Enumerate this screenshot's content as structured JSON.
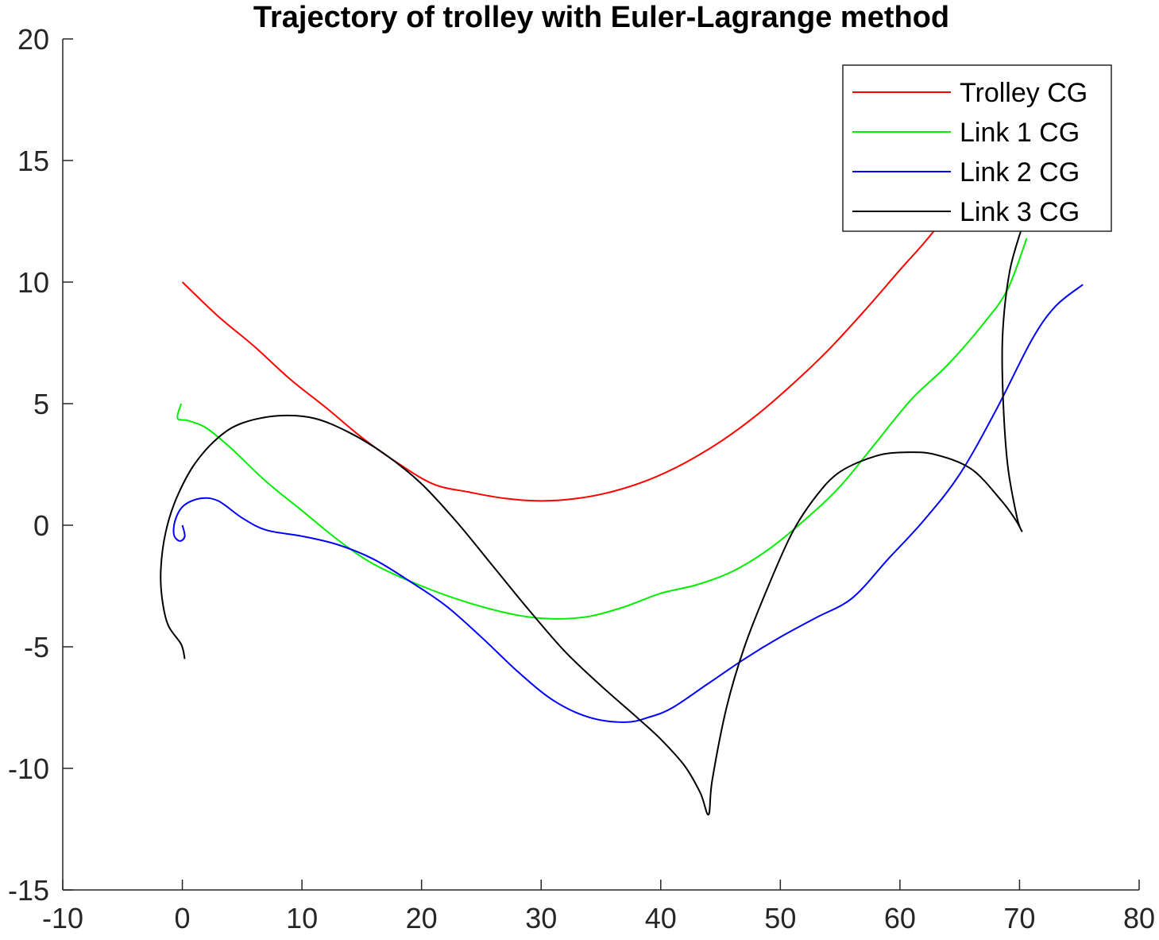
{
  "chart_data": {
    "type": "line",
    "title": "Trajectory of trolley with Euler-Lagrange method",
    "xlabel": "",
    "ylabel": "",
    "xlim": [
      -10,
      80
    ],
    "ylim": [
      -15,
      20
    ],
    "xticks": [
      "-10",
      "0",
      "10",
      "20",
      "30",
      "40",
      "50",
      "60",
      "70",
      "80"
    ],
    "yticks": [
      "-15",
      "-10",
      "-5",
      "0",
      "5",
      "10",
      "15",
      "20"
    ],
    "grid": false,
    "legend_position": "top-right",
    "series": [
      {
        "name": "Trolley CG",
        "color": "#ff0000",
        "points": [
          [
            0,
            10
          ],
          [
            3,
            8.59
          ],
          [
            6,
            7.36
          ],
          [
            9,
            6.01
          ],
          [
            12,
            4.84
          ],
          [
            15,
            3.61
          ],
          [
            18,
            2.56
          ],
          [
            21,
            1.69
          ],
          [
            24,
            1.36
          ],
          [
            27,
            1.1
          ],
          [
            30,
            1.0
          ],
          [
            33,
            1.1
          ],
          [
            36,
            1.39
          ],
          [
            39,
            1.87
          ],
          [
            42,
            2.56
          ],
          [
            45,
            3.44
          ],
          [
            48,
            4.52
          ],
          [
            51,
            5.79
          ],
          [
            54,
            7.2
          ],
          [
            57,
            8.8
          ],
          [
            60,
            10.5
          ],
          [
            62,
            11.6
          ],
          [
            64,
            12.8
          ],
          [
            65,
            13.4
          ]
        ]
      },
      {
        "name": "Link 1 CG",
        "color": "#00ee00",
        "points": [
          [
            -0.1,
            5.0
          ],
          [
            -0.4,
            4.4
          ],
          [
            0.5,
            4.3
          ],
          [
            2,
            4.0
          ],
          [
            4,
            3.2
          ],
          [
            7,
            1.8
          ],
          [
            10,
            0.6
          ],
          [
            13,
            -0.6
          ],
          [
            16,
            -1.6
          ],
          [
            20,
            -2.5
          ],
          [
            24,
            -3.2
          ],
          [
            28,
            -3.7
          ],
          [
            31,
            -3.85
          ],
          [
            34,
            -3.75
          ],
          [
            37,
            -3.35
          ],
          [
            40,
            -2.8
          ],
          [
            43,
            -2.45
          ],
          [
            46,
            -1.9
          ],
          [
            49,
            -1.0
          ],
          [
            52,
            0.2
          ],
          [
            55,
            1.6
          ],
          [
            58,
            3.4
          ],
          [
            61,
            5.2
          ],
          [
            64,
            6.6
          ],
          [
            67,
            8.3
          ],
          [
            69,
            9.7
          ],
          [
            70.6,
            11.8
          ]
        ]
      },
      {
        "name": "Link 2 CG",
        "color": "#0000ff",
        "points": [
          [
            0,
            0
          ],
          [
            0.2,
            -0.45
          ],
          [
            -0.2,
            -0.65
          ],
          [
            -0.7,
            -0.4
          ],
          [
            -0.6,
            0.2
          ],
          [
            0.1,
            0.8
          ],
          [
            1.5,
            1.1
          ],
          [
            3,
            1.0
          ],
          [
            5,
            0.3
          ],
          [
            7,
            -0.2
          ],
          [
            10,
            -0.45
          ],
          [
            13,
            -0.8
          ],
          [
            16,
            -1.4
          ],
          [
            19,
            -2.3
          ],
          [
            22,
            -3.3
          ],
          [
            25,
            -4.6
          ],
          [
            28,
            -6.0
          ],
          [
            31,
            -7.2
          ],
          [
            34,
            -7.9
          ],
          [
            37,
            -8.1
          ],
          [
            39,
            -7.9
          ],
          [
            41,
            -7.5
          ],
          [
            44,
            -6.5
          ],
          [
            47,
            -5.5
          ],
          [
            50,
            -4.6
          ],
          [
            53,
            -3.8
          ],
          [
            56,
            -3.0
          ],
          [
            59,
            -1.4
          ],
          [
            62,
            0.2
          ],
          [
            65,
            2.1
          ],
          [
            68,
            4.7
          ],
          [
            71,
            7.6
          ],
          [
            73,
            9.0
          ],
          [
            75.3,
            9.9
          ]
        ]
      },
      {
        "name": "Link 3 CG",
        "color": "#000000",
        "points": [
          [
            0.2,
            -5.5
          ],
          [
            -0.1,
            -4.9
          ],
          [
            -1.2,
            -4.1
          ],
          [
            -1.7,
            -3.0
          ],
          [
            -1.8,
            -1.8
          ],
          [
            -1.4,
            -0.3
          ],
          [
            -0.5,
            1.1
          ],
          [
            1,
            2.5
          ],
          [
            3,
            3.6
          ],
          [
            5,
            4.2
          ],
          [
            8,
            4.5
          ],
          [
            11,
            4.4
          ],
          [
            14,
            3.8
          ],
          [
            17,
            2.9
          ],
          [
            20,
            1.7
          ],
          [
            23,
            0.1
          ],
          [
            26,
            -1.7
          ],
          [
            29,
            -3.5
          ],
          [
            32,
            -5.2
          ],
          [
            35,
            -6.6
          ],
          [
            38,
            -7.9
          ],
          [
            40,
            -8.8
          ],
          [
            42,
            -9.9
          ],
          [
            43.3,
            -11.0
          ],
          [
            44,
            -11.9
          ],
          [
            44.3,
            -10.5
          ],
          [
            45.5,
            -7.5
          ],
          [
            47,
            -5.0
          ],
          [
            49,
            -2.5
          ],
          [
            51,
            -0.3
          ],
          [
            53,
            1.2
          ],
          [
            55,
            2.2
          ],
          [
            58,
            2.85
          ],
          [
            60.5,
            3.0
          ],
          [
            63,
            2.9
          ],
          [
            66,
            2.3
          ],
          [
            68.5,
            1.0
          ],
          [
            69.7,
            0.2
          ],
          [
            70.2,
            -0.25
          ],
          [
            69.8,
            0.3
          ],
          [
            69,
            2.5
          ],
          [
            68.6,
            5.5
          ],
          [
            68.6,
            8.0
          ],
          [
            69.2,
            10.5
          ],
          [
            70.3,
            12.4
          ]
        ]
      }
    ]
  }
}
